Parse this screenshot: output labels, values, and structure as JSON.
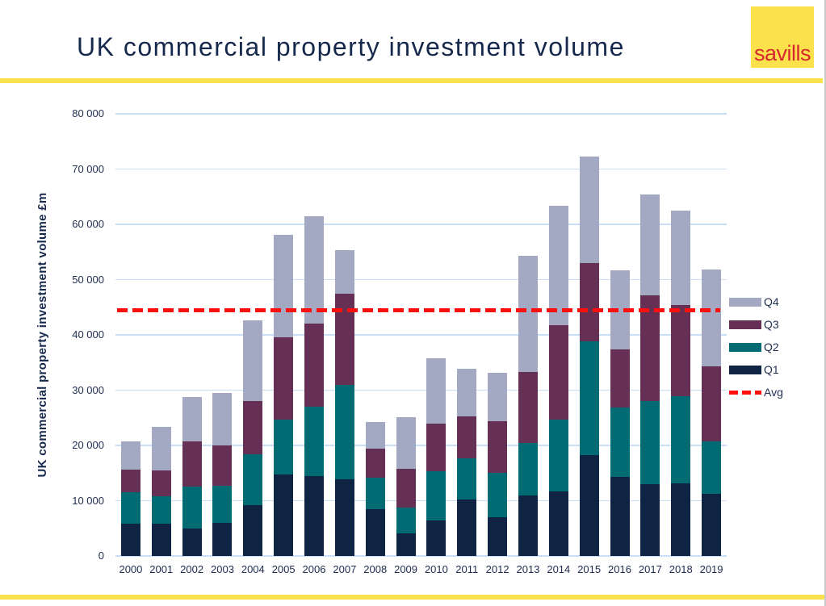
{
  "header": {
    "title": "UK commercial property investment volume",
    "logo_text": "savills"
  },
  "chart_data": {
    "type": "bar",
    "stacked": true,
    "title": "UK commercial property investment volume",
    "xlabel": "",
    "ylabel": "UK commercial property investment volume £m",
    "ylim": [
      0,
      80000
    ],
    "ytick_interval": 10000,
    "ytick_labels": [
      "0",
      "10 000",
      "20 000",
      "30 000",
      "40 000",
      "50 000",
      "60 000",
      "70 000",
      "80 000"
    ],
    "grid": true,
    "legend_position": "right",
    "legend_order": [
      "Q4",
      "Q3",
      "Q2",
      "Q1",
      "Avg"
    ],
    "categories": [
      "2000",
      "2001",
      "2002",
      "2003",
      "2004",
      "2005",
      "2006",
      "2007",
      "2008",
      "2009",
      "2010",
      "2011",
      "2012",
      "2013",
      "2014",
      "2015",
      "2016",
      "2017",
      "2018",
      "2019"
    ],
    "series": [
      {
        "name": "Q1",
        "color": "#0e2442",
        "values": [
          5800,
          5900,
          4900,
          6000,
          9200,
          14700,
          14500,
          13800,
          8500,
          4100,
          6400,
          10200,
          7000,
          10900,
          11700,
          18300,
          14300,
          13000,
          13200,
          11200
        ]
      },
      {
        "name": "Q2",
        "color": "#006b73",
        "values": [
          5800,
          4900,
          7700,
          6700,
          9200,
          10000,
          12500,
          17100,
          5700,
          4700,
          9000,
          7400,
          8000,
          9500,
          13000,
          20600,
          12600,
          15000,
          15700,
          9600
        ]
      },
      {
        "name": "Q3",
        "color": "#663055",
        "values": [
          4000,
          4700,
          8100,
          7300,
          9700,
          14900,
          15000,
          16500,
          5200,
          6900,
          8500,
          7600,
          9400,
          12900,
          17000,
          14100,
          10400,
          19200,
          16500,
          13500
        ]
      },
      {
        "name": "Q4",
        "color": "#a3a8c3",
        "values": [
          5200,
          7900,
          8000,
          9500,
          14600,
          18500,
          19500,
          7900,
          4800,
          9400,
          11800,
          8700,
          8800,
          21000,
          21600,
          19200,
          14400,
          18200,
          17100,
          17500
        ]
      }
    ],
    "avg_line": {
      "label": "Avg",
      "value": 44400,
      "color": "#fb100d",
      "style": "dashed"
    },
    "gridline_color": "#c9def7"
  },
  "colors": {
    "accent_yellow": "#fbe14b",
    "title_navy": "#16294c",
    "axis_text_navy": "#1e2d50",
    "logo_red": "#d7282f",
    "right_border_gray": "#c9c9c9"
  }
}
